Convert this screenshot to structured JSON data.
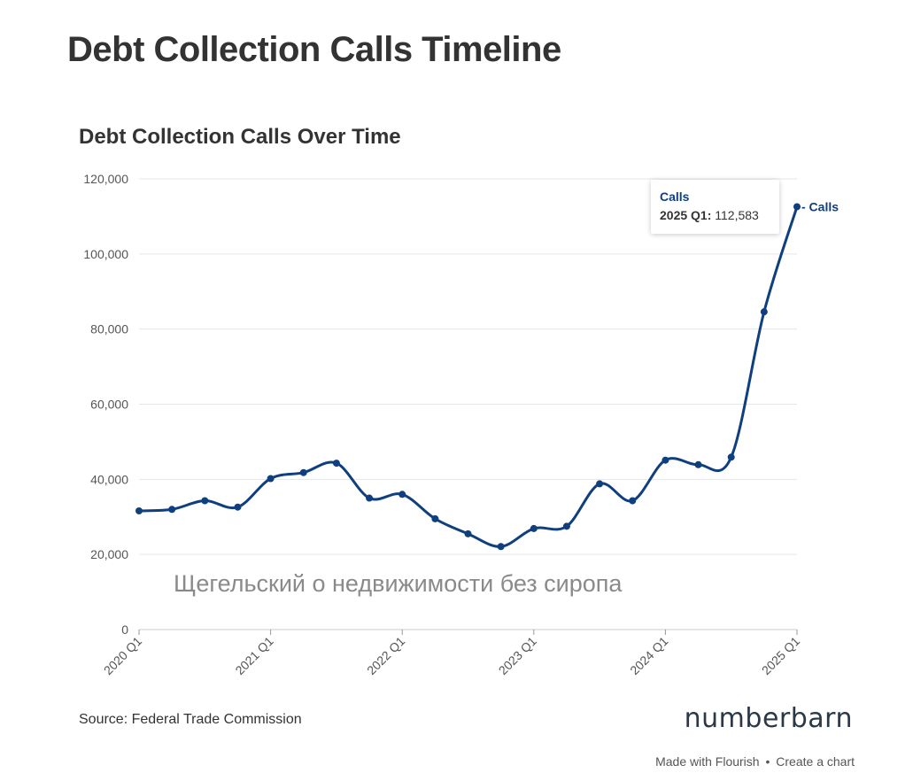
{
  "header": {
    "title": "Debt Collection Calls Timeline"
  },
  "chart_data": {
    "type": "line",
    "title": "Debt Collection Calls Over Time",
    "xlabel": "",
    "ylabel": "",
    "ylim": [
      0,
      120000
    ],
    "yticks": [
      "0",
      "20,000",
      "40,000",
      "60,000",
      "80,000",
      "100,000",
      "120,000"
    ],
    "xticks": [
      "2020 Q1",
      "2021 Q1",
      "2022 Q1",
      "2023 Q1",
      "2024 Q1",
      "2025 Q1"
    ],
    "grid": true,
    "series": [
      {
        "name": "Calls",
        "color": "#0f3f7f",
        "x": [
          "2020 Q1",
          "2020 Q2",
          "2020 Q3",
          "2020 Q4",
          "2021 Q1",
          "2021 Q2",
          "2021 Q3",
          "2021 Q4",
          "2022 Q1",
          "2022 Q2",
          "2022 Q3",
          "2022 Q4",
          "2023 Q1",
          "2023 Q2",
          "2023 Q3",
          "2023 Q4",
          "2024 Q1",
          "2024 Q2",
          "2024 Q3",
          "2024 Q4",
          "2025 Q1"
        ],
        "values": [
          31600,
          32000,
          34300,
          32600,
          40200,
          41800,
          44300,
          35000,
          36000,
          29500,
          25500,
          22100,
          26900,
          27500,
          38800,
          34300,
          45100,
          43900,
          45900,
          84600,
          112583
        ]
      }
    ],
    "end_label": "- Calls"
  },
  "tooltip": {
    "series": "Calls",
    "period": "2025 Q1:",
    "value": "112,583"
  },
  "watermark": "Щегельский о недвижимости без сиропа",
  "footer": {
    "source": "Source: Federal Trade Commission",
    "brand": "numberbarn",
    "made_with": "Made with Flourish",
    "separator": "•",
    "create": "Create a chart"
  }
}
